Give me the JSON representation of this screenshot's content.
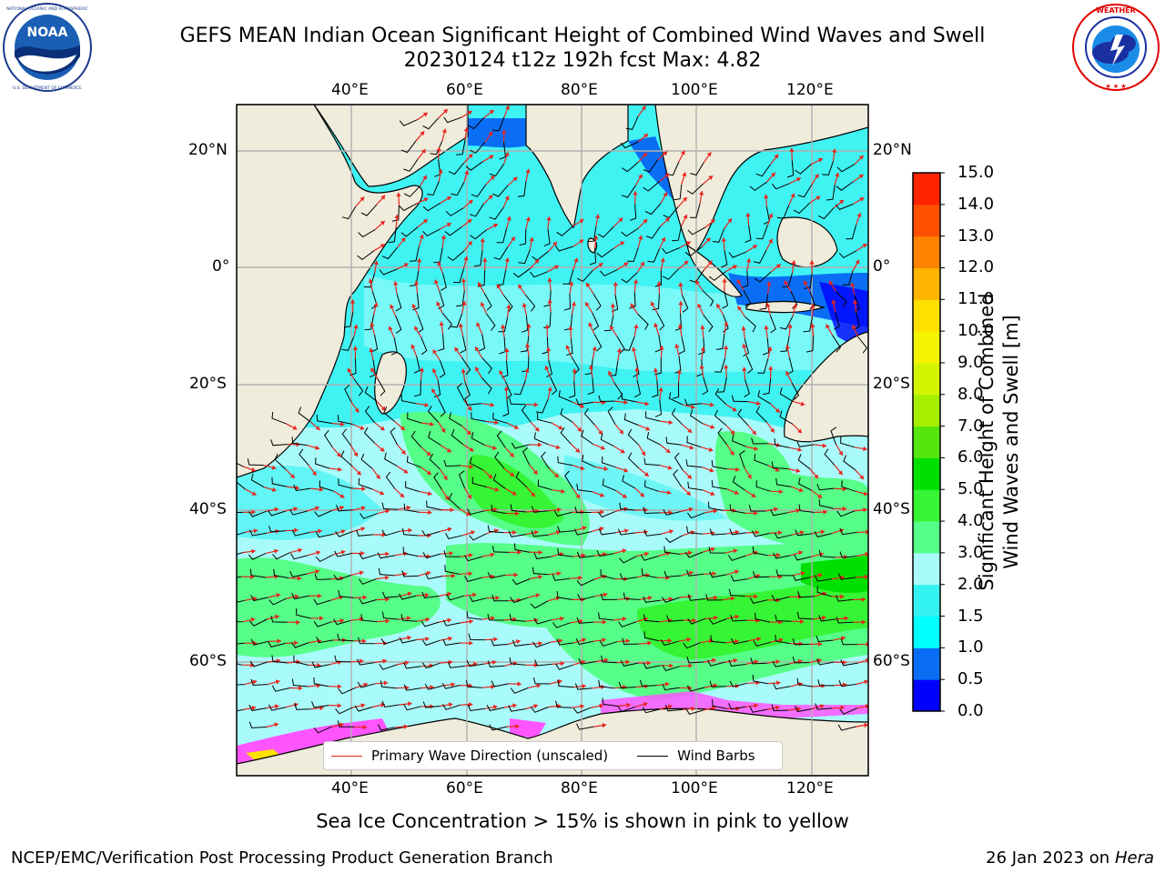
{
  "title": {
    "line1": "GEFS MEAN Indian Ocean Significant Height of Combined Wind Waves and Swell",
    "line2": "20230124 t12z 192h fcst   Max: 4.82"
  },
  "logos": {
    "left": {
      "name": "noaa-logo",
      "text": "NOAA",
      "ring_text": "NATIONAL OCEANIC AND ATMOSPHERIC ADMINISTRATION · U.S. DEPARTMENT OF COMMERCE"
    },
    "right": {
      "name": "nws-logo",
      "ring_text": "NATIONAL WEATHER SERVICE"
    }
  },
  "map": {
    "lon_top": [
      "40°E",
      "60°E",
      "80°E",
      "100°E",
      "120°E"
    ],
    "lon_bottom": [
      "40°E",
      "60°E",
      "80°E",
      "100°E",
      "120°E"
    ],
    "lat_left": [
      "20°N",
      "0°",
      "20°S",
      "40°S",
      "60°S"
    ],
    "lat_right": [
      "20°N",
      "0°",
      "20°S",
      "40°S",
      "60°S"
    ],
    "colors": {
      "land": "#efecdc",
      "coast": "#000000",
      "grid": "#b0b0b0",
      "arrows": "#e8231c",
      "barbs": "#000000",
      "sea_ice": "#ff55ff"
    }
  },
  "legend": {
    "wave_label": "Primary Wave Direction (unscaled)",
    "wind_label": "Wind Barbs"
  },
  "colorbar": {
    "ticks": [
      "0.0",
      "0.5",
      "1.0",
      "1.5",
      "2.0",
      "3.0",
      "4.0",
      "5.0",
      "6.0",
      "7.0",
      "8.0",
      "9.0",
      "10.0",
      "11.0",
      "12.0",
      "13.0",
      "14.0",
      "15.0"
    ],
    "colors": [
      "#0000ff",
      "#0a6ef5",
      "#00ffff",
      "#33f2f2",
      "#a9fbfb",
      "#55ff88",
      "#35f535",
      "#00e000",
      "#55e60f",
      "#a6ee00",
      "#d3f500",
      "#f4f400",
      "#ffe000",
      "#ffb400",
      "#ff8200",
      "#ff5000",
      "#ff2300"
    ],
    "label_line1": "Significant Height of Combined",
    "label_line2": "Wind Waves and Swell [m]"
  },
  "footer": {
    "note": "Sea Ice Concentration > 15% is shown in pink to yellow",
    "credit": "NCEP/EMC/Verification Post Processing Product Generation Branch",
    "date": "26 Jan 2023 on ",
    "host": "Hera"
  }
}
